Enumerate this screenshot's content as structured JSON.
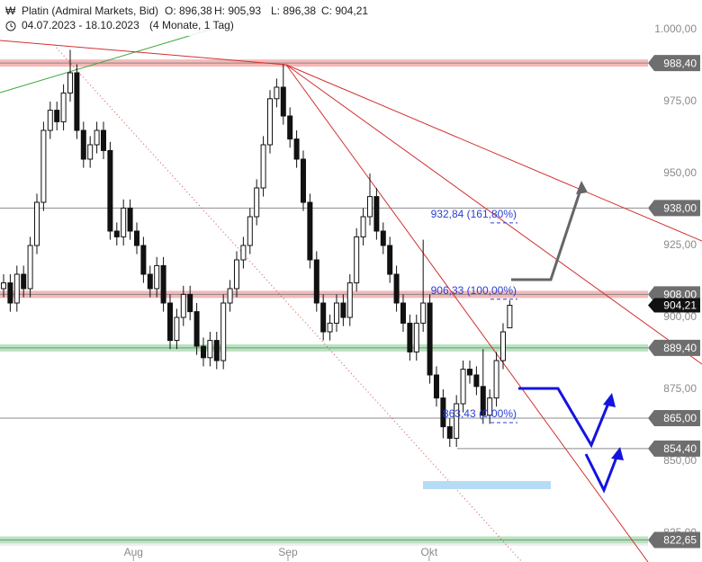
{
  "header": {
    "title": "Platin (Admiral Markets, Bid)",
    "ohlc": [
      "O: 896,38",
      "H: 905,93",
      "L: 896,38",
      "C: 904,21"
    ],
    "range": "04.07.2023 - 18.10.2023",
    "period": "(4 Monate, 1 Tag)"
  },
  "chart_data": {
    "type": "candlestick",
    "up_color": "#ffffff",
    "down_color": "#111111",
    "xlim": [
      -0.54,
      96.76
    ],
    "ylim": [
      820.9375,
      1010.3125
    ],
    "xticks": [
      {
        "value": 19.5,
        "label": "Aug"
      },
      {
        "value": 42.7,
        "label": "Sep"
      },
      {
        "value": 63.9,
        "label": "Okt"
      }
    ],
    "yticks": [
      {
        "value": 1000,
        "label": "1.000,00"
      },
      {
        "value": 975,
        "label": "975,00"
      },
      {
        "value": 950,
        "label": "950,00"
      },
      {
        "value": 925,
        "label": "925,00"
      },
      {
        "value": 900,
        "label": "900,00"
      },
      {
        "value": 875,
        "label": "875,00"
      },
      {
        "value": 850,
        "label": "850,00"
      },
      {
        "value": 825,
        "label": "825,00"
      }
    ],
    "open": [
      910,
      912,
      905,
      915,
      910,
      925,
      940,
      965,
      972,
      968,
      978,
      985,
      965,
      955,
      960,
      965,
      958,
      930,
      928,
      938,
      930,
      925,
      915,
      910,
      918,
      905,
      892,
      900,
      908,
      902,
      890,
      886,
      892,
      885,
      905,
      910,
      920,
      925,
      935,
      945,
      960,
      976,
      980,
      970,
      962,
      955,
      940,
      920,
      905,
      895,
      898,
      905,
      900,
      912,
      928,
      935,
      942,
      930,
      925,
      915,
      905,
      898,
      888,
      898,
      905,
      880,
      872,
      862,
      858,
      870,
      882,
      880,
      876,
      866,
      872,
      885,
      896.38
    ],
    "high": [
      915,
      915,
      918,
      918,
      928,
      943,
      968,
      975,
      975,
      981,
      993,
      988,
      968,
      963,
      968,
      968,
      961,
      933,
      941,
      941,
      933,
      928,
      918,
      921,
      921,
      908,
      903,
      911,
      911,
      905,
      893,
      895,
      895,
      908,
      913,
      923,
      928,
      938,
      948,
      963,
      979,
      983,
      988,
      973,
      965,
      958,
      943,
      923,
      908,
      901,
      908,
      908,
      915,
      931,
      938,
      950,
      945,
      933,
      928,
      918,
      908,
      901,
      901,
      927,
      908,
      883,
      875,
      865,
      873,
      885,
      885,
      883,
      889,
      875,
      888,
      898,
      905.93
    ],
    "low": [
      907,
      902,
      902,
      907,
      907,
      922,
      937,
      962,
      965,
      965,
      975,
      962,
      952,
      952,
      957,
      955,
      927,
      925,
      925,
      927,
      922,
      912,
      907,
      907,
      902,
      889,
      889,
      897,
      899,
      887,
      883,
      883,
      882,
      882,
      902,
      907,
      917,
      922,
      932,
      942,
      957,
      973,
      967,
      959,
      952,
      937,
      917,
      902,
      892,
      892,
      895,
      897,
      897,
      909,
      925,
      932,
      927,
      922,
      912,
      902,
      895,
      885,
      885,
      895,
      877,
      869,
      858,
      855,
      855,
      867,
      877,
      873,
      863,
      863,
      869,
      882,
      896.38
    ],
    "close": [
      912,
      905,
      915,
      910,
      925,
      940,
      965,
      972,
      968,
      978,
      985,
      965,
      955,
      960,
      965,
      958,
      930,
      928,
      938,
      930,
      925,
      915,
      910,
      918,
      905,
      892,
      900,
      908,
      902,
      890,
      886,
      892,
      885,
      905,
      910,
      920,
      925,
      935,
      945,
      960,
      976,
      980,
      970,
      962,
      955,
      940,
      920,
      905,
      895,
      898,
      905,
      900,
      912,
      928,
      935,
      942,
      930,
      925,
      915,
      905,
      898,
      888,
      898,
      905,
      880,
      872,
      862,
      858,
      870,
      882,
      880,
      876,
      866,
      872,
      885,
      895,
      904.21
    ],
    "levels": [
      {
        "value": 988.4,
        "label": "988,40",
        "color": "#f5b8b8",
        "band": true
      },
      {
        "value": 938,
        "label": "938,00",
        "color": "#8c8c8c",
        "band": false
      },
      {
        "value": 908,
        "label": "908,00",
        "color": "#f5b8b8",
        "band": true
      },
      {
        "value": 889.4,
        "label": "889,40",
        "color": "#b7e4bf",
        "band": true
      },
      {
        "value": 865,
        "label": "865,00",
        "color": "#8c8c8c",
        "band": false
      },
      {
        "value": 854.4,
        "label": "854,40",
        "color": "#8c8c8c",
        "band": false
      },
      {
        "value": 822.65,
        "label": "822,65",
        "color": "#b7e4bf",
        "band": true
      }
    ],
    "price_tag": {
      "value": 904.21,
      "label": "904,21"
    },
    "fib": [
      {
        "value": 932.84,
        "label": "932,84 (161,80%)"
      },
      {
        "value": 906.33,
        "label": "906,33 (100,00%)"
      },
      {
        "value": 863.43,
        "label": "863,43 (0,00%)"
      }
    ]
  }
}
